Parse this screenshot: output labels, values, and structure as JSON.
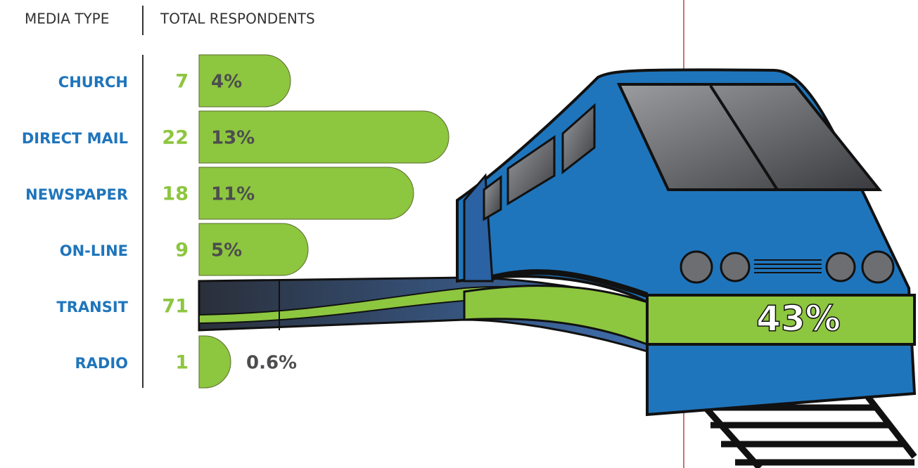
{
  "chart_data": {
    "type": "bar",
    "column_headers": [
      "MEDIA TYPE",
      "TOTAL RESPONDENTS"
    ],
    "categories": [
      "CHURCH",
      "DIRECT MAIL",
      "NEWSPAPER",
      "ON-LINE",
      "TRANSIT",
      "RADIO"
    ],
    "counts": [
      7,
      22,
      18,
      9,
      71,
      1
    ],
    "values": [
      4,
      13,
      11,
      5,
      43,
      0.6
    ],
    "value_labels": [
      "4%",
      "13%",
      "11%",
      "5%",
      "43%",
      "0.6%"
    ],
    "color": "#8dc63f",
    "category_color": "#1f75bc",
    "count_color": "#8dc63f"
  }
}
